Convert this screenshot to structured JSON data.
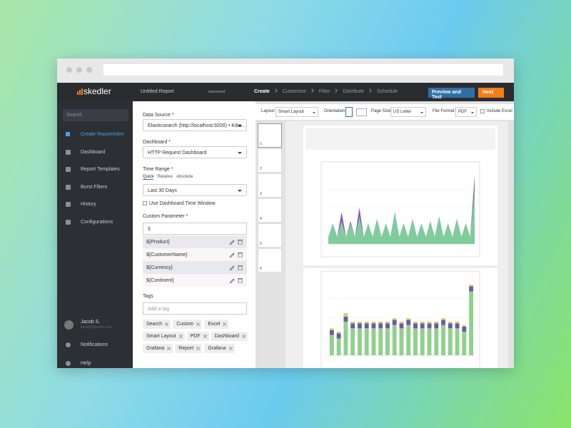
{
  "app": {
    "logo": "skedler",
    "report_name": "Untitled Report",
    "status": "autosaved",
    "steps": [
      "Create",
      "Customize",
      "Filter",
      "Distribute",
      "Schedule"
    ],
    "preview_button": "Preview and Test",
    "next_button": "Next"
  },
  "sidebar": {
    "search_placeholder": "Search",
    "menu": [
      "Create Report/Alert",
      "Dashboard",
      "Report Templates",
      "Burst Filters",
      "History",
      "Configurations"
    ],
    "user": {
      "name": "Jacob S.",
      "email": "jacob@skedler.com"
    },
    "bottom_menu": [
      "Notifications",
      "Help"
    ]
  },
  "form": {
    "data_source": {
      "label": "Data Source *",
      "value": "Elasticsearch (http://localhost:9200) • Kiba..."
    },
    "dashboard": {
      "label": "Dashboard *",
      "value": "HTTP Request Dashboard"
    },
    "time_range": {
      "label": "Time Range *",
      "tabs": [
        "Quick",
        "Relative",
        "Absolute"
      ],
      "value": "Last 30 Days",
      "checkbox": "Use Dashboard Time Window"
    },
    "custom_parameters": {
      "label": "Custom Parameter *",
      "input": "$",
      "items": [
        "${Product}",
        "${CustomerName}",
        "${Currency}",
        "${Continent}"
      ]
    },
    "tags": {
      "label": "Tags",
      "placeholder": "Add a tag",
      "items": [
        "Search",
        "Custom",
        "Excel",
        "Smart Layout",
        "PDF",
        "Dashboard",
        "Grafana",
        "Report",
        "Grafana"
      ]
    }
  },
  "toolbar": {
    "layout_label": "Layout:",
    "layout": "Smart Layout",
    "orientation_label": "Orientation:",
    "page_size_label": "Page Size:",
    "page_size": "US Letter",
    "file_format_label": "File Format:",
    "file_format": "PDF",
    "include_excel": "Include Excel"
  },
  "preview": {
    "pages": [
      "1",
      "2",
      "3",
      "4",
      "5",
      "6"
    ],
    "area_chart": {
      "type": "area",
      "ylim": [
        0,
        32
      ],
      "series": [
        {
          "color": "#7d4fb3",
          "values": [
            3,
            9,
            3,
            14,
            3,
            10,
            3,
            16,
            3,
            9,
            3,
            11,
            3,
            9,
            3,
            14,
            3,
            9,
            3,
            11,
            3,
            9,
            3,
            10,
            3,
            12,
            3,
            9,
            3,
            11,
            3,
            9,
            3,
            30
          ]
        },
        {
          "color": "#7fd39a",
          "values": [
            3,
            9,
            3,
            10,
            3,
            9,
            3,
            12,
            3,
            9,
            3,
            11,
            3,
            9,
            3,
            14,
            3,
            9,
            3,
            11,
            3,
            9,
            3,
            10,
            3,
            12,
            3,
            9,
            3,
            11,
            3,
            9,
            3,
            24
          ]
        }
      ]
    },
    "bar_chart": {
      "type": "bar",
      "ylim": [
        0,
        45
      ],
      "series": [
        {
          "color": "#8fd18a",
          "values": [
            12,
            10,
            20,
            16,
            16,
            16,
            16,
            16,
            16,
            18,
            16,
            18,
            16,
            16,
            16,
            16,
            18,
            16,
            16,
            14,
            38
          ]
        },
        {
          "color": "#6a5aa8",
          "values": [
            3,
            3,
            3,
            3,
            3,
            3,
            3,
            3,
            3,
            3,
            3,
            3,
            3,
            3,
            3,
            3,
            3,
            3,
            3,
            3,
            3
          ]
        },
        {
          "color": "#d8cf6a",
          "values": [
            1,
            1,
            2,
            1,
            1,
            1,
            1,
            1,
            1,
            1,
            1,
            1,
            1,
            1,
            1,
            1,
            1,
            1,
            1,
            1,
            1
          ]
        }
      ]
    }
  }
}
